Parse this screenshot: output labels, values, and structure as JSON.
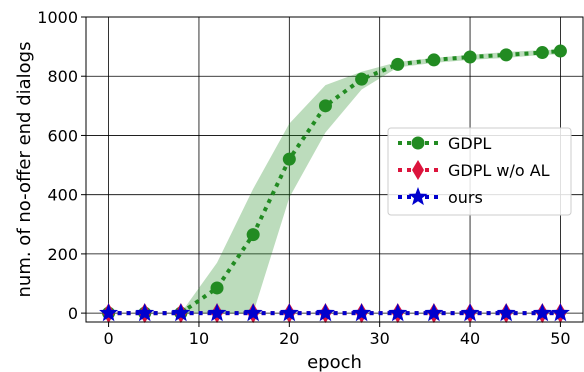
{
  "chart_data": {
    "type": "line",
    "xlabel": "epoch",
    "ylabel": "num. of no-offer end dialogs",
    "xlim": [
      -2.5,
      52.5
    ],
    "ylim": [
      -30,
      1000
    ],
    "x_ticks": [
      0,
      10,
      20,
      30,
      40,
      50
    ],
    "y_ticks": [
      0,
      200,
      400,
      600,
      800,
      1000
    ],
    "grid": true,
    "legend_position": "center-right",
    "x": [
      0,
      4,
      8,
      12,
      16,
      20,
      24,
      28,
      32,
      36,
      40,
      44,
      48,
      50
    ],
    "series": [
      {
        "name": "GDPL",
        "color": "#228B22",
        "marker": "circle",
        "line_style": "dotted",
        "values": [
          0,
          0,
          0,
          85,
          265,
          520,
          700,
          790,
          840,
          855,
          865,
          872,
          880,
          885
        ],
        "band_lower": [
          0,
          0,
          0,
          0,
          0,
          390,
          610,
          755,
          830,
          845,
          855,
          862,
          872,
          874
        ],
        "band_upper": [
          0,
          0,
          0,
          170,
          420,
          640,
          770,
          815,
          848,
          862,
          872,
          882,
          888,
          890
        ]
      },
      {
        "name": "GDPL w/o AL",
        "color": "#DC143C",
        "marker": "diamond",
        "line_style": "dotted",
        "values": [
          0,
          0,
          0,
          0,
          0,
          0,
          0,
          0,
          0,
          0,
          0,
          0,
          0,
          0
        ]
      },
      {
        "name": "ours",
        "color": "#0000CD",
        "marker": "star",
        "line_style": "dotted",
        "values": [
          0,
          0,
          0,
          0,
          0,
          0,
          0,
          0,
          0,
          0,
          0,
          0,
          0,
          0
        ]
      }
    ]
  }
}
